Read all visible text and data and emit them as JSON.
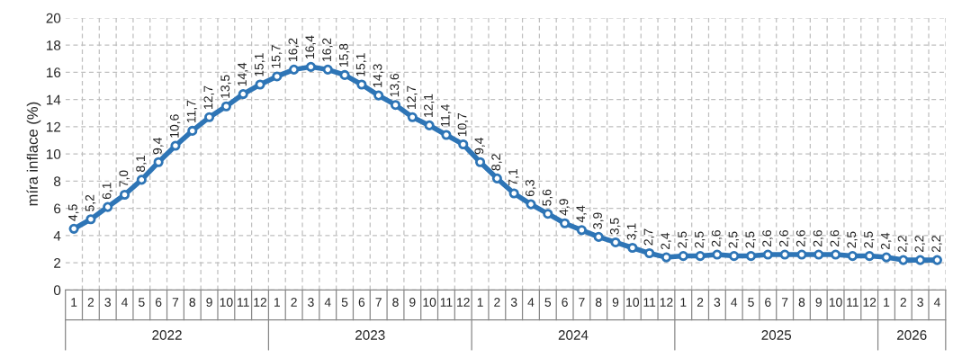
{
  "chart_data": {
    "type": "line",
    "ylabel": "míra inflace (%)",
    "categories": [
      "1",
      "2",
      "3",
      "4",
      "5",
      "6",
      "7",
      "8",
      "9",
      "10",
      "11",
      "12",
      "1",
      "2",
      "3",
      "4",
      "5",
      "6",
      "7",
      "8",
      "9",
      "10",
      "11",
      "12",
      "1",
      "2",
      "3",
      "4",
      "5",
      "6",
      "7",
      "8",
      "9",
      "10",
      "11",
      "12",
      "1",
      "2",
      "3",
      "4",
      "5",
      "6",
      "7",
      "8",
      "9",
      "10",
      "11",
      "12",
      "1",
      "2",
      "3",
      "4"
    ],
    "series": [
      {
        "color": "#2e75b6",
        "values": [
          4.5,
          5.2,
          6.1,
          7.0,
          8.1,
          9.4,
          10.6,
          11.7,
          12.7,
          13.5,
          14.4,
          15.1,
          15.7,
          16.2,
          16.4,
          16.2,
          15.8,
          15.1,
          14.3,
          13.6,
          12.7,
          12.1,
          11.4,
          10.7,
          9.4,
          8.2,
          7.1,
          6.3,
          5.6,
          4.9,
          4.4,
          3.9,
          3.5,
          3.1,
          2.7,
          2.4,
          2.5,
          2.5,
          2.6,
          2.5,
          2.5,
          2.6,
          2.6,
          2.6,
          2.6,
          2.6,
          2.5,
          2.5,
          2.4,
          2.2,
          2.2,
          2.2
        ],
        "value_labels": [
          "4,5",
          "5,2",
          "6,1",
          "7,0",
          "8,1",
          "9,4",
          "10,6",
          "11,7",
          "12,7",
          "13,5",
          "14,4",
          "15,1",
          "15,7",
          "16,2",
          "16,4",
          "16,2",
          "15,8",
          "15,1",
          "14,3",
          "13,6",
          "12,7",
          "12,1",
          "11,4",
          "10,7",
          "9,4",
          "8,2",
          "7,1",
          "6,3",
          "5,6",
          "4,9",
          "4,4",
          "3,9",
          "3,5",
          "3,1",
          "2,7",
          "2,4",
          "2,5",
          "2,5",
          "2,6",
          "2,5",
          "2,5",
          "2,6",
          "2,6",
          "2,6",
          "2,6",
          "2,6",
          "2,5",
          "2,5",
          "2,4",
          "2,2",
          "2,2",
          "2,2"
        ]
      }
    ],
    "annotations": [
      "2022",
      "2023",
      "2024",
      "2025",
      "2026"
    ],
    "ylim": [
      0,
      20
    ],
    "yticks": [
      0,
      2,
      4,
      6,
      8,
      10,
      12,
      14,
      16,
      18,
      20
    ],
    "grid": true,
    "marker": "circle",
    "line_style": "solid",
    "legend": false
  }
}
